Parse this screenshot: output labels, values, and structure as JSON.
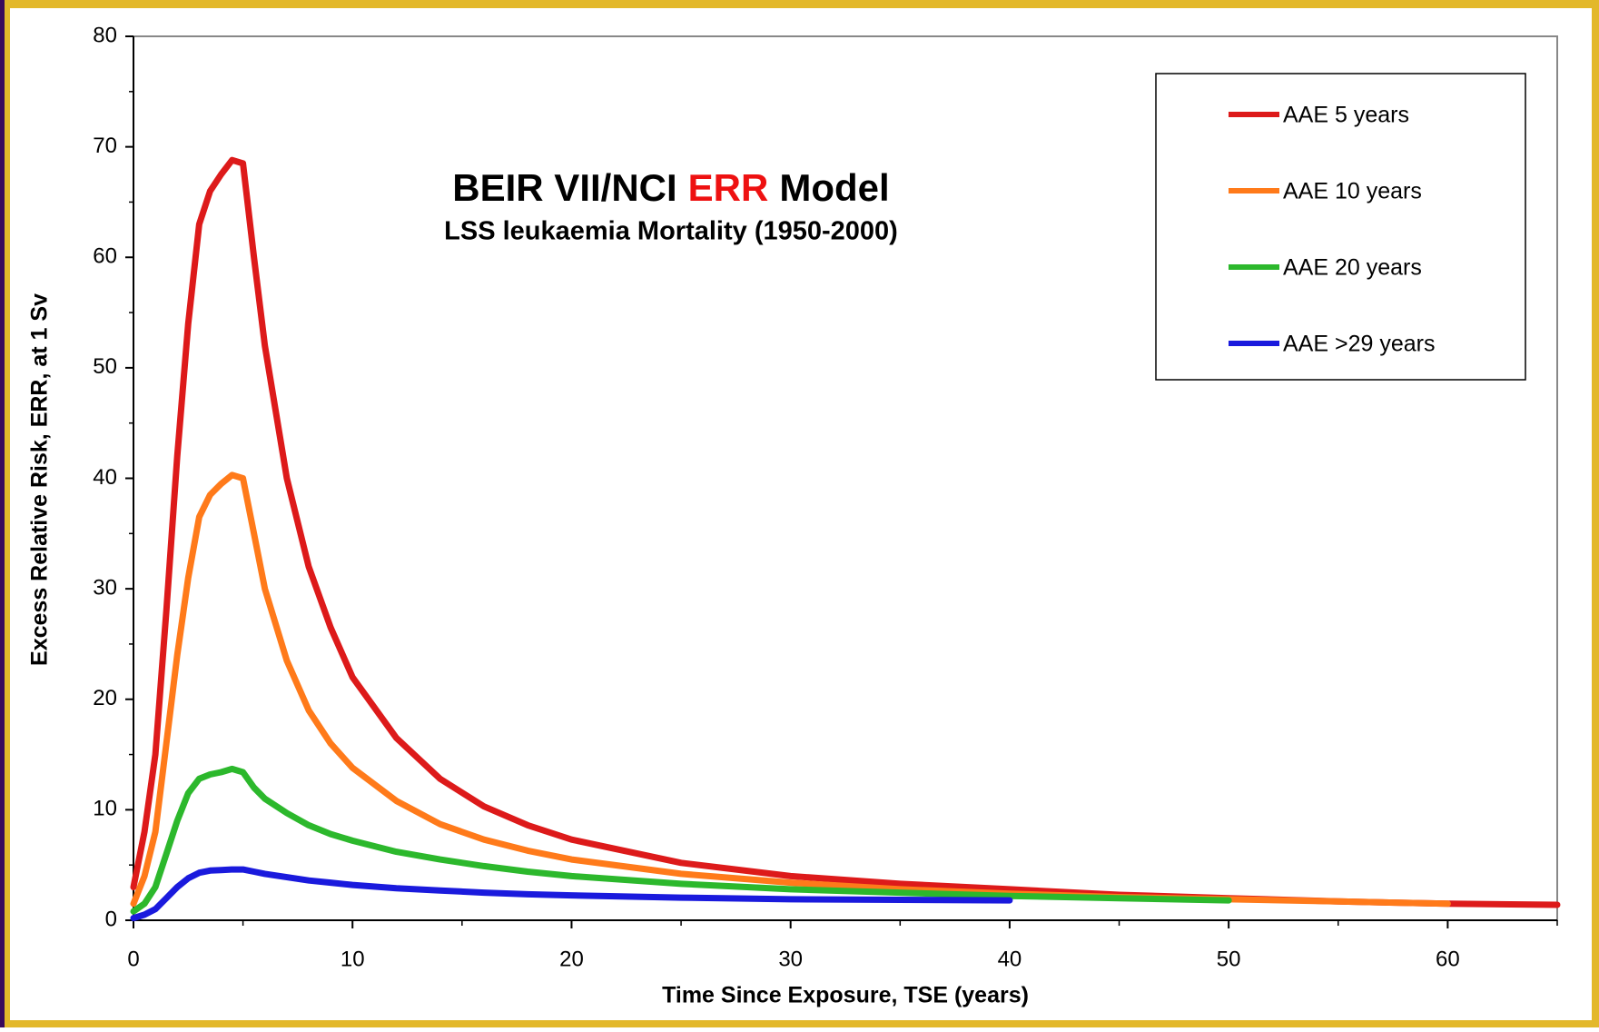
{
  "chart_data": {
    "type": "line",
    "title": [
      "BEIR VII/NCI",
      "ERR",
      "Model"
    ],
    "title_colors": [
      "#000000",
      "#ee1111",
      "#000000"
    ],
    "subtitle": "LSS leukaemia Mortality (1950-2000)",
    "x_label": "Time Since Exposure, TSE (years)",
    "y_label": "Excess Relative Risk, ERR, at 1 Sv",
    "x": [
      0,
      0.5,
      1,
      1.5,
      2,
      2.5,
      3,
      3.5,
      4,
      4.5,
      5,
      5.5,
      6,
      7,
      8,
      9,
      10,
      12,
      14,
      16,
      18,
      20,
      25,
      30,
      35,
      40,
      45,
      50,
      55,
      60,
      65
    ],
    "series": [
      {
        "name": "AAE 5 years",
        "color": "#dd1a1a",
        "values": [
          3,
          8,
          15,
          28,
          42,
          54,
          63,
          66,
          67.5,
          68.8,
          68.5,
          60,
          52,
          40,
          32,
          26.5,
          22,
          16.5,
          12.8,
          10.3,
          8.6,
          7.3,
          5.2,
          4.0,
          3.3,
          2.8,
          2.3,
          2.0,
          1.7,
          1.5,
          1.4
        ]
      },
      {
        "name": "AAE 10 years",
        "color": "#ff7a1a",
        "values": [
          1.5,
          4,
          8,
          16,
          24,
          31,
          36.5,
          38.5,
          39.5,
          40.3,
          40,
          35,
          30,
          23.5,
          19,
          16,
          13.8,
          10.8,
          8.7,
          7.3,
          6.3,
          5.5,
          4.2,
          3.4,
          2.8,
          2.4,
          2.1,
          1.9,
          1.7,
          1.5,
          null
        ]
      },
      {
        "name": "AAE 20 years",
        "color": "#2cb82c",
        "values": [
          0.8,
          1.5,
          3,
          6,
          9,
          11.5,
          12.8,
          13.2,
          13.4,
          13.7,
          13.4,
          12,
          11,
          9.7,
          8.6,
          7.8,
          7.2,
          6.2,
          5.5,
          4.9,
          4.4,
          4.0,
          3.3,
          2.8,
          2.5,
          2.2,
          2.0,
          1.8,
          null,
          null,
          null
        ]
      },
      {
        "name": "AAE >29 years",
        "color": "#1a1add",
        "values": [
          0.2,
          0.5,
          1,
          2,
          3,
          3.8,
          4.3,
          4.5,
          4.55,
          4.6,
          4.6,
          4.4,
          4.2,
          3.9,
          3.6,
          3.4,
          3.2,
          2.9,
          2.7,
          2.5,
          2.35,
          2.25,
          2.05,
          1.9,
          1.85,
          1.8,
          null,
          null,
          null,
          null,
          null
        ]
      }
    ],
    "xlim": [
      0,
      65
    ],
    "ylim": [
      0,
      80
    ],
    "xticks": [
      0,
      10,
      20,
      30,
      40,
      50,
      60
    ],
    "yticks": [
      0,
      10,
      20,
      30,
      40,
      50,
      60,
      70,
      80
    ],
    "xminorticks": [
      5,
      15,
      25,
      35,
      45,
      55,
      65
    ],
    "yminorticks": [
      5,
      15,
      25,
      35,
      45,
      55,
      65,
      75
    ],
    "grid": false,
    "legend": "top-right"
  }
}
